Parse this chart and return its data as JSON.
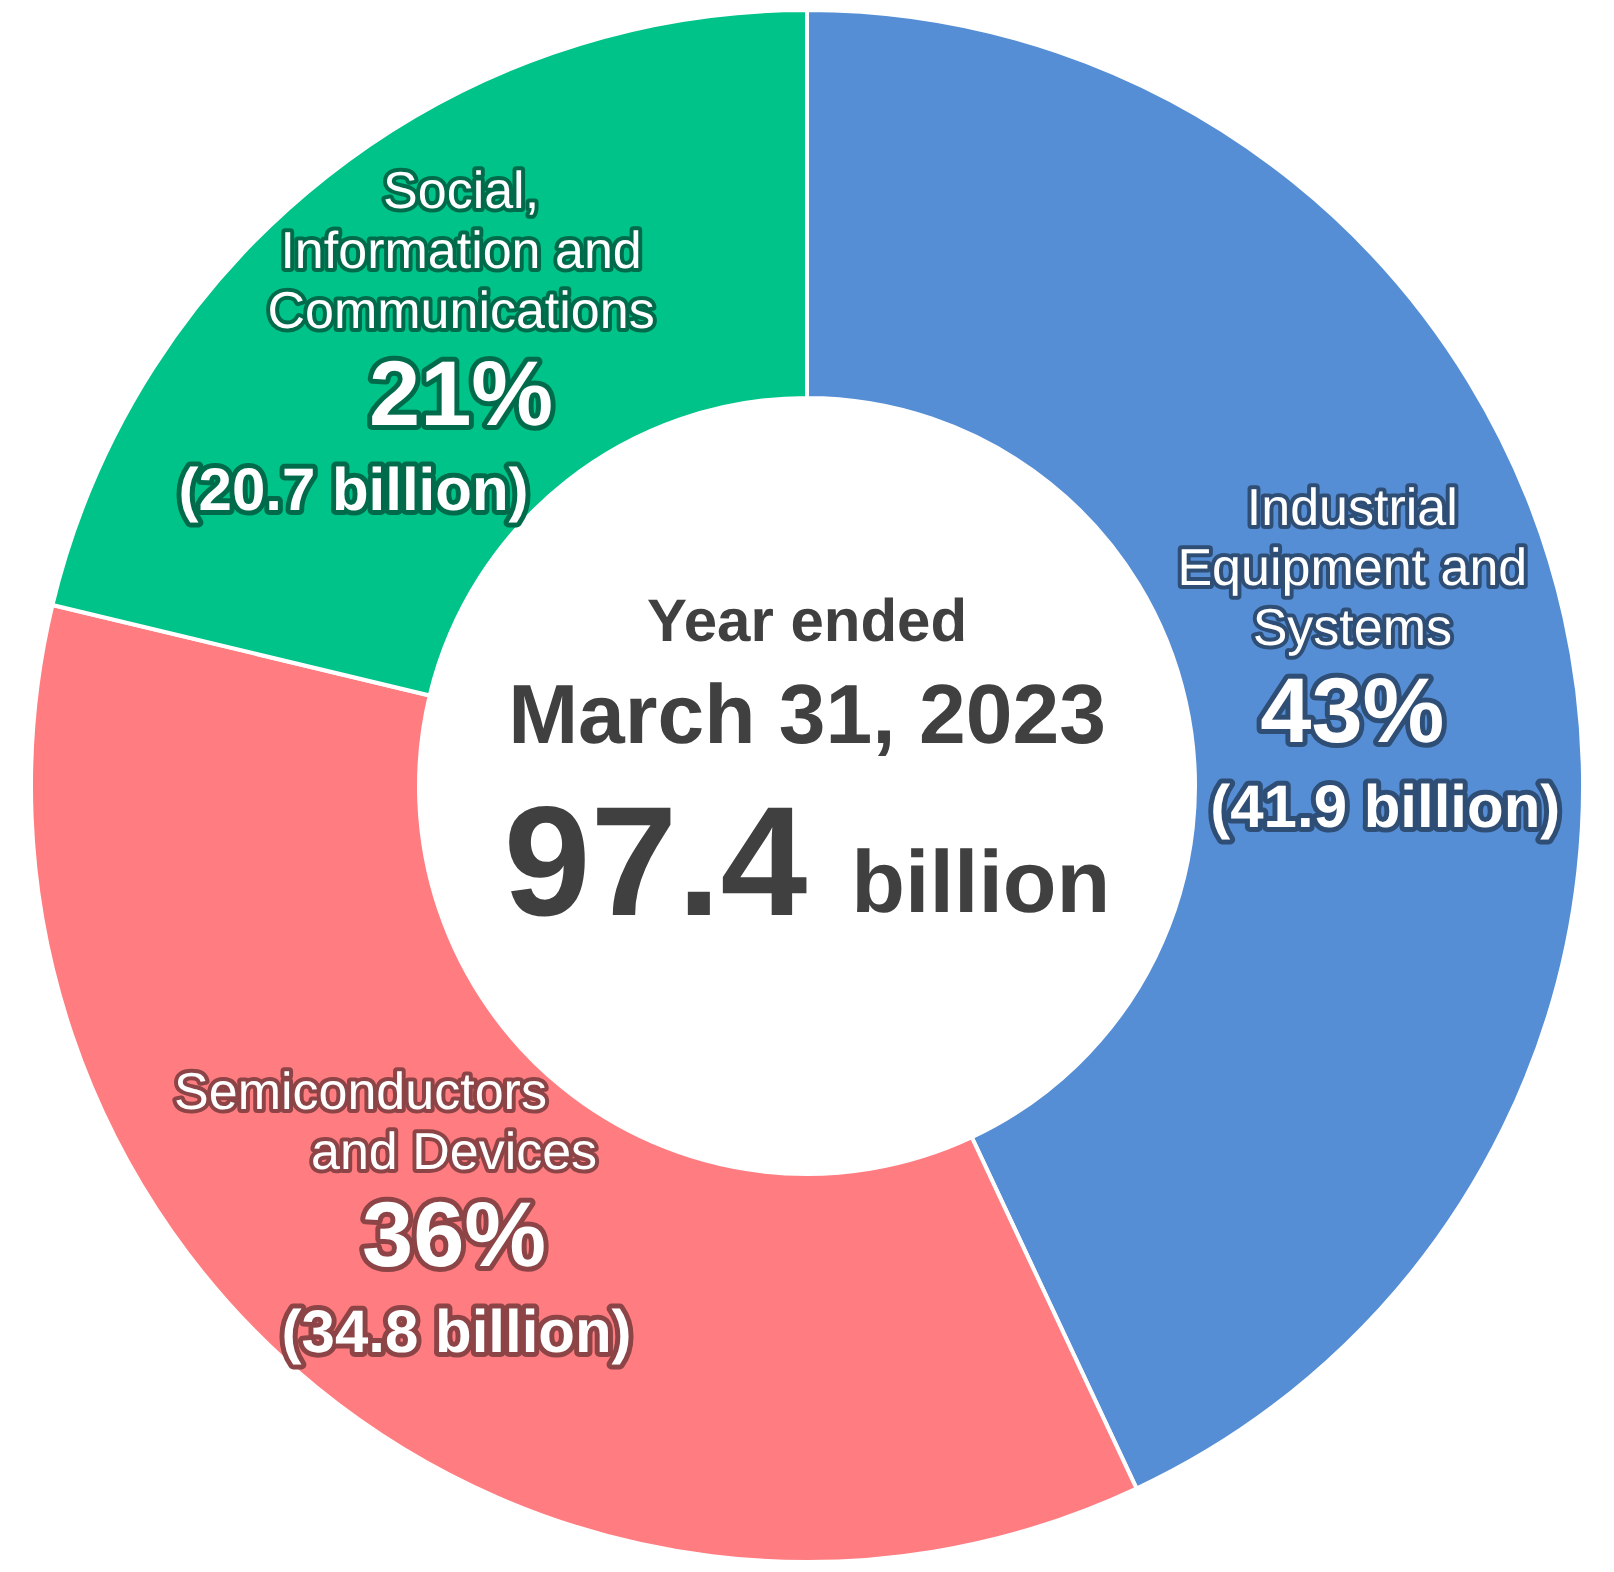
{
  "chart_data": {
    "type": "donut",
    "categories": [
      "Industrial Equipment and Systems",
      "Semiconductors and Devices",
      "Social, Information and Communications"
    ],
    "values": [
      41.9,
      34.8,
      20.7
    ],
    "colors": [
      "#558ed5",
      "#ff7c80",
      "#00c389"
    ],
    "value_labels": [
      "(41.9 billion)",
      "(34.8 billion)",
      "(20.7 billion)"
    ],
    "annotations": [
      "Year ended",
      "March 31, 2023",
      "97.4 billion",
      {
        "text": "43%",
        "x": "Industrial Equipment and Systems"
      },
      {
        "text": "36%",
        "x": "Semiconductors and Devices"
      },
      {
        "text": "21%",
        "x": "Social, Information and Communications"
      }
    ],
    "legend": false
  }
}
